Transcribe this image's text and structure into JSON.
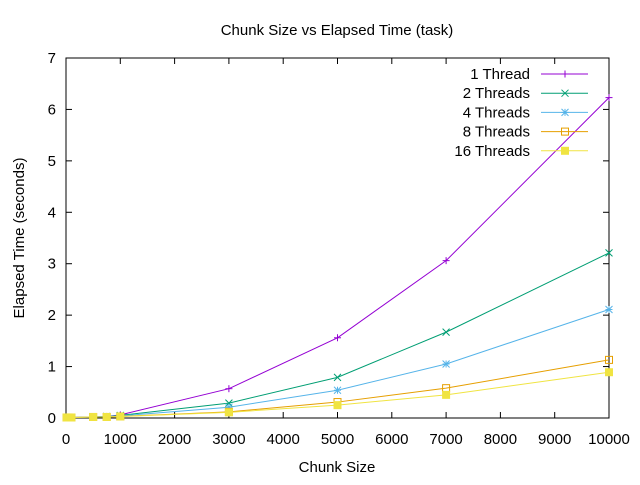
{
  "chart_data": {
    "type": "line",
    "title": "Chunk Size vs Elapsed Time (task)",
    "xlabel": "Chunk Size",
    "ylabel": "Elapsed Time (seconds)",
    "xlim": [
      0,
      10000
    ],
    "ylim": [
      0,
      7
    ],
    "xticks": [
      0,
      1000,
      2000,
      3000,
      4000,
      5000,
      6000,
      7000,
      8000,
      9000,
      10000
    ],
    "yticks": [
      0,
      1,
      2,
      3,
      4,
      5,
      6,
      7
    ],
    "grid": false,
    "legend_position": "top-right",
    "x": [
      10,
      50,
      100,
      500,
      750,
      1000,
      3000,
      5000,
      7000,
      10000
    ],
    "series": [
      {
        "name": "1 Thread",
        "color": "#9400d3",
        "marker": "plus",
        "values": [
          0.01,
          0.01,
          0.01,
          0.02,
          0.03,
          0.06,
          0.57,
          1.56,
          3.06,
          6.23
        ]
      },
      {
        "name": "2 Threads",
        "color": "#009e73",
        "marker": "cross",
        "values": [
          0.01,
          0.01,
          0.01,
          0.02,
          0.03,
          0.05,
          0.29,
          0.79,
          1.67,
          3.21
        ]
      },
      {
        "name": "4 Threads",
        "color": "#56b4e9",
        "marker": "asterisk",
        "values": [
          0.01,
          0.01,
          0.01,
          0.02,
          0.03,
          0.04,
          0.21,
          0.54,
          1.05,
          2.11
        ]
      },
      {
        "name": "8 Threads",
        "color": "#e69f00",
        "marker": "open-square",
        "values": [
          0.01,
          0.01,
          0.01,
          0.02,
          0.02,
          0.03,
          0.12,
          0.31,
          0.58,
          1.13
        ]
      },
      {
        "name": "16 Threads",
        "color": "#f0e442",
        "marker": "filled-square",
        "values": [
          0.01,
          0.01,
          0.01,
          0.02,
          0.02,
          0.03,
          0.11,
          0.25,
          0.45,
          0.89
        ]
      }
    ]
  }
}
